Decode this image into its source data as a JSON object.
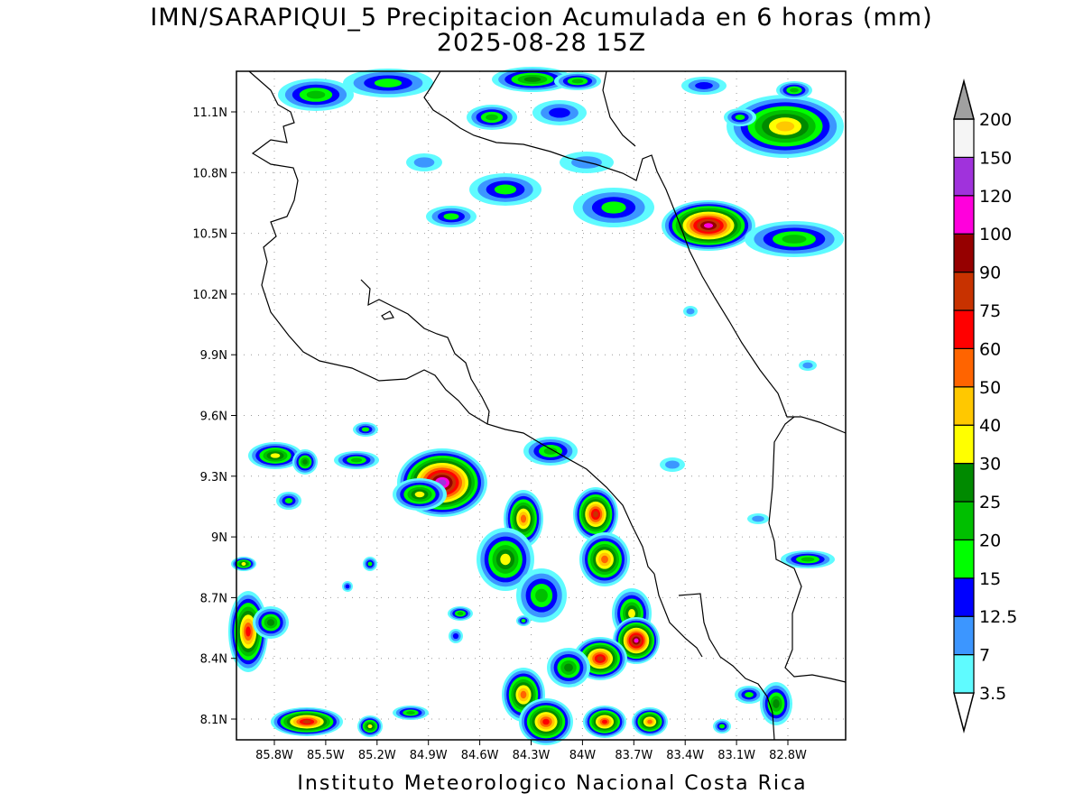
{
  "title": {
    "line1": "IMN/SARAPIQUI_5 Precipitacion Acumulada en 6 horas (mm)",
    "line2": "2025-08-28 15Z"
  },
  "footer": "Instituto Meteorologico Nacional Costa Rica",
  "axes": {
    "lat_ticks": [
      "11.1N",
      "10.8N",
      "10.5N",
      "10.2N",
      "9.9N",
      "9.6N",
      "9.3N",
      "9N",
      "8.7N",
      "8.4N",
      "8.1N"
    ],
    "lon_ticks": [
      "85.8W",
      "85.5W",
      "85.2W",
      "84.9W",
      "84.6W",
      "84.3W",
      "84W",
      "83.7W",
      "83.4W",
      "83.1W",
      "82.8W"
    ],
    "lat_range": [
      8.0,
      11.3
    ],
    "lon_range": [
      -86.0,
      -83.0
    ],
    "grid": true
  },
  "colorbar": {
    "levels": [
      "3.5",
      "7",
      "12.5",
      "15",
      "20",
      "25",
      "30",
      "40",
      "50",
      "60",
      "75",
      "90",
      "100",
      "120",
      "150",
      "200"
    ],
    "colors": [
      "#5ffbff",
      "#3c96ff",
      "#0000ff",
      "#00ff00",
      "#00bf00",
      "#008a00",
      "#ffff00",
      "#ffc800",
      "#ff6400",
      "#ff0000",
      "#c83200",
      "#960000",
      "#ff00dc",
      "#a032dc",
      "#f5f5f5",
      "#a0a0a0"
    ]
  }
}
